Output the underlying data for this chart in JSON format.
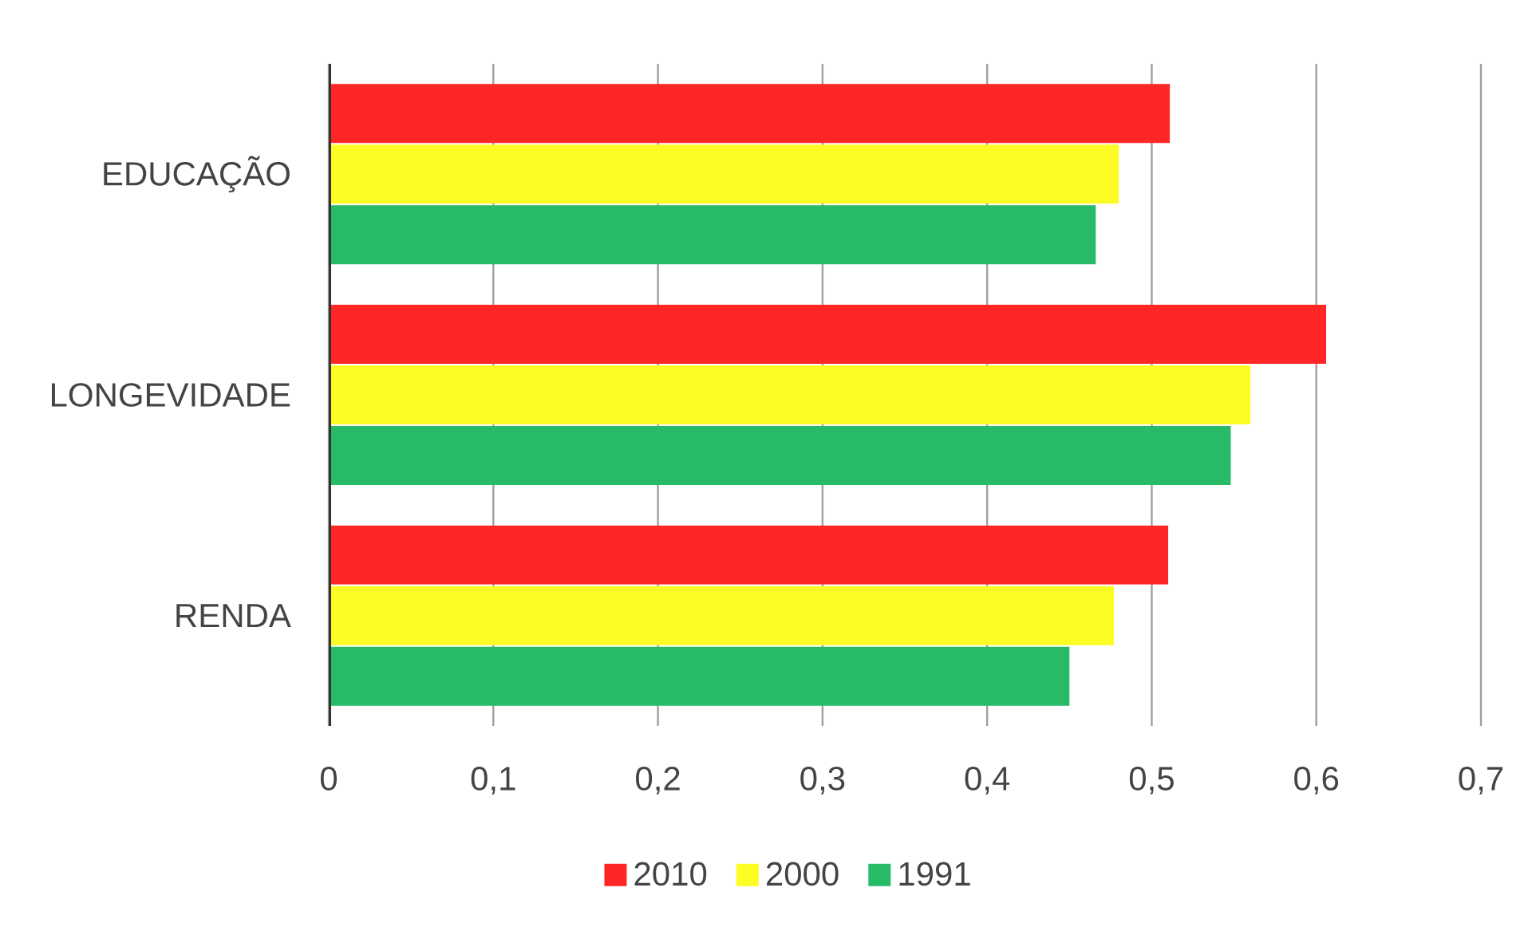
{
  "chart_data": {
    "type": "bar",
    "orientation": "horizontal",
    "categories": [
      "EDUCAÇÃO",
      "LONGEVIDADE",
      "RENDA"
    ],
    "series": [
      {
        "name": "2010",
        "color": "#ff2626",
        "values": [
          0.511,
          0.606,
          0.51
        ]
      },
      {
        "name": "2000",
        "color": "#fdfc25",
        "values": [
          0.48,
          0.56,
          0.477
        ]
      },
      {
        "name": "1991",
        "color": "#27bb67",
        "values": [
          0.466,
          0.548,
          0.45
        ]
      }
    ],
    "xlim": [
      0,
      0.7
    ],
    "xticks": [
      0,
      {
        "value": 0.1,
        "label": "0,1"
      },
      {
        "value": 0.2,
        "label": "0,2"
      },
      {
        "value": 0.3,
        "label": "0,3"
      },
      {
        "value": 0.4,
        "label": "0,4"
      },
      {
        "value": 0.5,
        "label": "0,5"
      },
      {
        "value": 0.6,
        "label": "0,6"
      },
      {
        "value": 0.7,
        "label": "0,7"
      }
    ],
    "grid": "x",
    "legend": "bottom"
  }
}
